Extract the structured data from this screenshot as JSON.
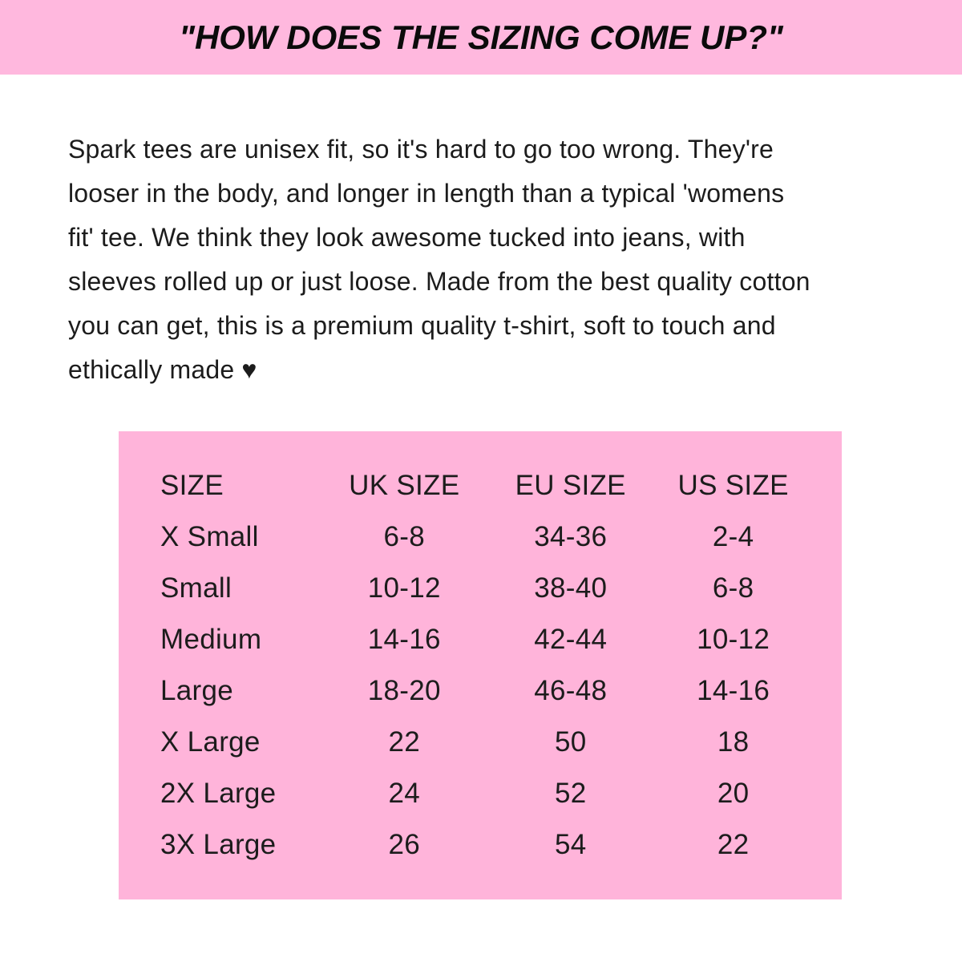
{
  "page": {
    "background_color": "#ffffff"
  },
  "banner": {
    "title": "\"HOW DOES THE SIZING COME UP?\"",
    "background_color": "#ffb8de",
    "text_color": "#0b0b0b"
  },
  "description": {
    "lines": [
      "Spark tees are unisex fit, so it's hard to go too wrong. They're",
      "looser in the body, and longer in length than a typical 'womens",
      "fit' tee. We think they look awesome tucked into jeans, with",
      "sleeves rolled up or just loose. Made from the best quality cotton",
      "you can get, this is a premium quality t-shirt, soft to touch and",
      "ethically made ♥"
    ],
    "heart_icon": "♥"
  },
  "size_chart": {
    "background_color": "#ffb4da",
    "columns": [
      "SIZE",
      "UK SIZE",
      "EU SIZE",
      "US SIZE"
    ],
    "rows": [
      [
        "X Small",
        "6-8",
        "34-36",
        "2-4"
      ],
      [
        "Small",
        "10-12",
        "38-40",
        "6-8"
      ],
      [
        "Medium",
        "14-16",
        "42-44",
        "10-12"
      ],
      [
        "Large",
        "18-20",
        "46-48",
        "14-16"
      ],
      [
        "X Large",
        "22",
        "50",
        "18"
      ],
      [
        "2X Large",
        "24",
        "52",
        "20"
      ],
      [
        "3X Large",
        "26",
        "54",
        "22"
      ]
    ]
  }
}
